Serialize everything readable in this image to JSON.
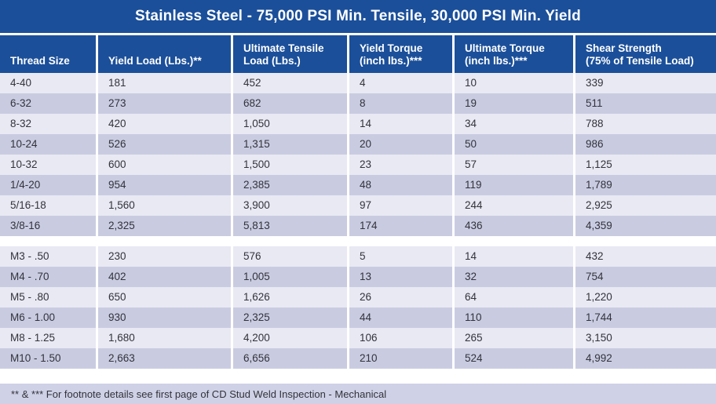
{
  "title": "Stainless Steel  - 75,000 PSI Min. Tensile, 30,000 PSI Min. Yield",
  "columns": [
    "Thread Size",
    "Yield Load (Lbs.)**",
    "Ultimate Tensile\nLoad (Lbs.)",
    "Yield Torque\n(inch lbs.)***",
    "Ultimate Torque\n(inch lbs.)***",
    "Shear Strength\n(75% of Tensile Load)"
  ],
  "sections": [
    {
      "name": "imperial-thread-sizes",
      "rows": [
        [
          "4-40",
          "181",
          "452",
          "4",
          "10",
          "339"
        ],
        [
          "6-32",
          "273",
          "682",
          "8",
          "19",
          "511"
        ],
        [
          "8-32",
          "420",
          "1,050",
          "14",
          "34",
          "788"
        ],
        [
          "10-24",
          "526",
          "1,315",
          "20",
          "50",
          "986"
        ],
        [
          "10-32",
          "600",
          "1,500",
          "23",
          "57",
          "1,125"
        ],
        [
          "1/4-20",
          "954",
          "2,385",
          "48",
          "119",
          "1,789"
        ],
        [
          "5/16-18",
          "1,560",
          "3,900",
          "97",
          "244",
          "2,925"
        ],
        [
          "3/8-16",
          "2,325",
          "5,813",
          "174",
          "436",
          "4,359"
        ]
      ]
    },
    {
      "name": "metric-thread-sizes",
      "rows": [
        [
          "M3 - .50",
          "230",
          "576",
          "5",
          "14",
          "432"
        ],
        [
          "M4 - .70",
          "402",
          "1,005",
          "13",
          "32",
          "754"
        ],
        [
          "M5 - .80",
          "650",
          "1,626",
          "26",
          "64",
          "1,220"
        ],
        [
          "M6 - 1.00",
          "930",
          "2,325",
          "44",
          "110",
          "1,744"
        ],
        [
          "M8 - 1.25",
          "1,680",
          "4,200",
          "106",
          "265",
          "3,150"
        ],
        [
          "M10 - 1.50",
          "2,663",
          "6,656",
          "210",
          "524",
          "4,992"
        ]
      ]
    }
  ],
  "footnote": "** & *** For footnote details see first page of CD Stud Weld Inspection - Mechanical",
  "colors": {
    "header_blue": "#1B4F9A",
    "row_light": "#E8E9F3",
    "row_dark": "#C9CCE1",
    "footer_bar": "#CFD1E6",
    "body_text": "#33333B"
  }
}
